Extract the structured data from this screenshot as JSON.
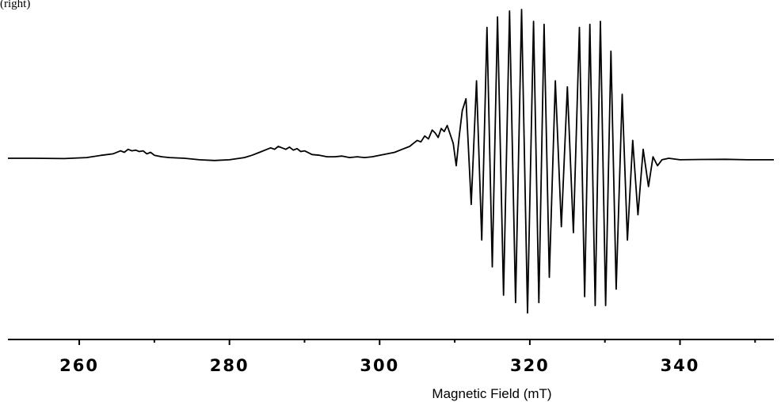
{
  "corner_label": "(right)",
  "chart_data": {
    "type": "line",
    "title": "",
    "xlabel": "Magnetic Field (mT)",
    "ylabel": "",
    "xlim": [
      250.5,
      352.5
    ],
    "ylim": [
      -1.0,
      1.0
    ],
    "x_major_ticks": [
      260,
      280,
      300,
      320,
      340
    ],
    "x_tick_labels": [
      "260",
      "280",
      "300",
      "320",
      "340"
    ],
    "x_minor_ticks": [
      270,
      290,
      310,
      330,
      350
    ],
    "grid": false,
    "legend": "none",
    "line_color": "#000000",
    "series": [
      {
        "x": [
          250.5,
          254,
          258,
          261,
          263,
          264.5,
          265.5,
          266,
          266.5,
          267,
          267.5,
          268,
          268.5,
          269,
          269.5,
          270,
          271,
          272,
          274,
          276,
          278,
          280,
          282,
          283,
          284,
          285,
          285.5,
          286,
          286.5,
          287,
          287.5,
          288,
          288.5,
          289,
          289.5,
          290,
          291,
          292,
          293,
          294,
          295,
          296,
          297,
          298,
          299,
          300,
          301,
          302,
          303,
          304,
          304.5,
          305,
          305.5,
          306,
          306.5,
          307,
          307.4,
          307.8,
          308.2,
          308.6,
          309,
          309.4,
          309.8,
          310.2,
          310.6,
          311.0,
          311.5,
          312.2,
          312.9,
          313.6,
          314.3,
          315.0,
          315.7,
          316.5,
          317.3,
          318.1,
          318.9,
          319.7,
          320.5,
          321.2,
          321.9,
          322.6,
          323.4,
          324.2,
          325.0,
          325.8,
          326.6,
          327.3,
          328.0,
          328.7,
          329.4,
          330.1,
          330.8,
          331.5,
          332.3,
          333.0,
          333.7,
          334.4,
          335.1,
          335.8,
          336.4,
          337.0,
          337.6,
          338.5,
          340,
          343,
          346,
          349,
          352.5
        ],
        "y": [
          0.0,
          0.0,
          -0.002,
          0.005,
          0.02,
          0.03,
          0.05,
          0.04,
          0.06,
          0.05,
          0.055,
          0.045,
          0.05,
          0.03,
          0.04,
          0.02,
          0.01,
          0.005,
          0.0,
          -0.01,
          -0.015,
          -0.01,
          0.005,
          0.02,
          0.04,
          0.06,
          0.07,
          0.06,
          0.08,
          0.07,
          0.06,
          0.075,
          0.055,
          0.065,
          0.045,
          0.05,
          0.025,
          0.02,
          0.01,
          0.01,
          0.015,
          0.005,
          0.01,
          0.005,
          0.01,
          0.02,
          0.03,
          0.04,
          0.06,
          0.08,
          0.1,
          0.12,
          0.11,
          0.15,
          0.13,
          0.19,
          0.17,
          0.14,
          0.2,
          0.18,
          0.22,
          0.16,
          0.1,
          -0.05,
          0.15,
          0.32,
          0.4,
          -0.31,
          0.52,
          -0.55,
          0.88,
          -0.73,
          0.95,
          -0.92,
          0.99,
          -0.97,
          1.0,
          -1.04,
          0.92,
          -0.97,
          0.9,
          -0.8,
          0.52,
          -0.46,
          0.48,
          -0.5,
          0.88,
          -0.93,
          0.9,
          -0.99,
          0.92,
          -0.99,
          0.72,
          -0.88,
          0.43,
          -0.55,
          0.12,
          -0.38,
          0.06,
          -0.19,
          0.01,
          -0.05,
          -0.01,
          0.0,
          -0.01,
          -0.008,
          -0.007,
          -0.01,
          -0.01
        ]
      }
    ]
  }
}
